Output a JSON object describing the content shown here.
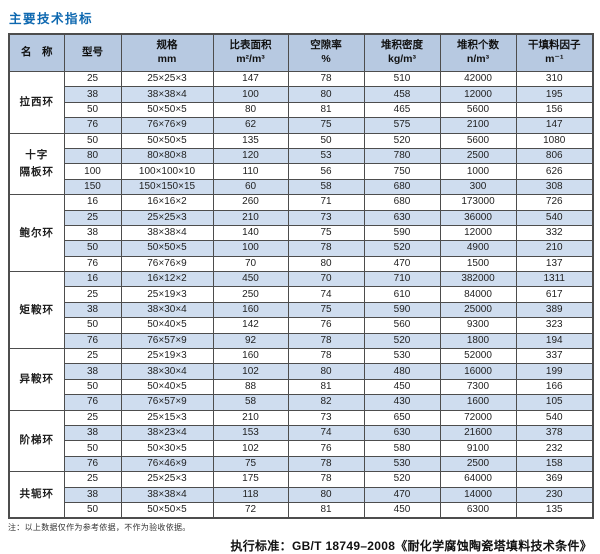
{
  "page": {
    "title": "主要技术指标"
  },
  "colors": {
    "title_color": "#0e68b0",
    "header_bg": "#b7c9e1",
    "stripe_bg": "#cfddef",
    "border_color": "#4d4d4d"
  },
  "table": {
    "headers": [
      {
        "line1": "名　称",
        "line2": ""
      },
      {
        "line1": "型号",
        "line2": ""
      },
      {
        "line1": "规格",
        "line2": "mm"
      },
      {
        "line1": "比表面积",
        "line2": "m²/m³"
      },
      {
        "line1": "空隙率",
        "line2": "%"
      },
      {
        "line1": "堆积密度",
        "line2": "kg/m³"
      },
      {
        "line1": "堆积个数",
        "line2": "n/m³"
      },
      {
        "line1": "干填料因子",
        "line2": "m⁻¹"
      }
    ],
    "groups": [
      {
        "name": "拉西环",
        "rows": [
          [
            "25",
            "25×25×3",
            "147",
            "78",
            "510",
            "42000",
            "310"
          ],
          [
            "38",
            "38×38×4",
            "100",
            "80",
            "458",
            "12000",
            "195"
          ],
          [
            "50",
            "50×50×5",
            "80",
            "81",
            "465",
            "5600",
            "156"
          ],
          [
            "76",
            "76×76×9",
            "62",
            "75",
            "575",
            "2100",
            "147"
          ]
        ]
      },
      {
        "name": "十字\n隔板环",
        "rows": [
          [
            "50",
            "50×50×5",
            "135",
            "50",
            "520",
            "5600",
            "1080"
          ],
          [
            "80",
            "80×80×8",
            "120",
            "53",
            "780",
            "2500",
            "806"
          ],
          [
            "100",
            "100×100×10",
            "110",
            "56",
            "750",
            "1000",
            "626"
          ],
          [
            "150",
            "150×150×15",
            "60",
            "58",
            "680",
            "300",
            "308"
          ]
        ]
      },
      {
        "name": "鲍尔环",
        "rows": [
          [
            "16",
            "16×16×2",
            "260",
            "71",
            "680",
            "173000",
            "726"
          ],
          [
            "25",
            "25×25×3",
            "210",
            "73",
            "630",
            "36000",
            "540"
          ],
          [
            "38",
            "38×38×4",
            "140",
            "75",
            "590",
            "12000",
            "332"
          ],
          [
            "50",
            "50×50×5",
            "100",
            "78",
            "520",
            "4900",
            "210"
          ],
          [
            "76",
            "76×76×9",
            "70",
            "80",
            "470",
            "1500",
            "137"
          ]
        ]
      },
      {
        "name": "矩鞍环",
        "rows": [
          [
            "16",
            "16×12×2",
            "450",
            "70",
            "710",
            "382000",
            "1311"
          ],
          [
            "25",
            "25×19×3",
            "250",
            "74",
            "610",
            "84000",
            "617"
          ],
          [
            "38",
            "38×30×4",
            "160",
            "75",
            "590",
            "25000",
            "389"
          ],
          [
            "50",
            "50×40×5",
            "142",
            "76",
            "560",
            "9300",
            "323"
          ],
          [
            "76",
            "76×57×9",
            "92",
            "78",
            "520",
            "1800",
            "194"
          ]
        ]
      },
      {
        "name": "异鞍环",
        "rows": [
          [
            "25",
            "25×19×3",
            "160",
            "78",
            "530",
            "52000",
            "337"
          ],
          [
            "38",
            "38×30×4",
            "102",
            "80",
            "480",
            "16000",
            "199"
          ],
          [
            "50",
            "50×40×5",
            "88",
            "81",
            "450",
            "7300",
            "166"
          ],
          [
            "76",
            "76×57×9",
            "58",
            "82",
            "430",
            "1600",
            "105"
          ]
        ]
      },
      {
        "name": "阶梯环",
        "rows": [
          [
            "25",
            "25×15×3",
            "210",
            "73",
            "650",
            "72000",
            "540"
          ],
          [
            "38",
            "38×23×4",
            "153",
            "74",
            "630",
            "21600",
            "378"
          ],
          [
            "50",
            "50×30×5",
            "102",
            "76",
            "580",
            "9100",
            "232"
          ],
          [
            "76",
            "76×46×9",
            "75",
            "78",
            "530",
            "2500",
            "158"
          ]
        ]
      },
      {
        "name": "共轭环",
        "rows": [
          [
            "25",
            "25×25×3",
            "175",
            "78",
            "520",
            "64000",
            "369"
          ],
          [
            "38",
            "38×38×4",
            "118",
            "80",
            "470",
            "14000",
            "230"
          ],
          [
            "50",
            "50×50×5",
            "72",
            "81",
            "450",
            "6300",
            "135"
          ]
        ]
      }
    ]
  },
  "footer": {
    "note": "注：以上数据仅作为参考依据，不作为验收依据。",
    "standard": "执行标准：GB/T 18749–2008《耐化学腐蚀陶瓷塔填料技术条件》"
  }
}
